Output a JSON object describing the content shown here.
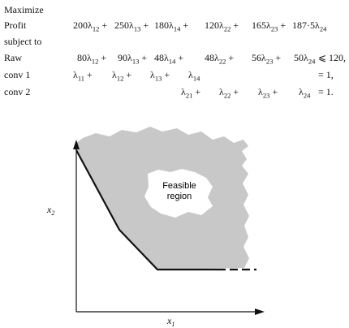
{
  "lp": {
    "maximize": "Maximize",
    "profit_label": "Profit",
    "subject_to": "subject to",
    "objective": [
      {
        "coef": "200",
        "idx": "12",
        "plus": true
      },
      {
        "coef": "250",
        "idx": "13",
        "plus": true
      },
      {
        "coef": "180",
        "idx": "14",
        "plus": true
      },
      {
        "coef": "120",
        "idx": "22",
        "plus": true
      },
      {
        "coef": "165",
        "idx": "23",
        "plus": true
      },
      {
        "coef": "187·5",
        "idx": "24",
        "plus": false
      }
    ],
    "constraints": [
      {
        "label": "Raw",
        "terms": [
          {
            "coef": "80",
            "idx": "12",
            "plus": true
          },
          {
            "coef": "90",
            "idx": "13",
            "plus": true
          },
          {
            "coef": "48",
            "idx": "14",
            "plus": true
          },
          {
            "coef": "48",
            "idx": "22",
            "plus": true
          },
          {
            "coef": "56",
            "idx": "23",
            "plus": true
          },
          {
            "coef": "50",
            "idx": "24",
            "plus": false
          }
        ],
        "relation": "⩽ 120,"
      },
      {
        "label": "conv 1",
        "terms": [
          {
            "coef": "",
            "idx": "11",
            "plus": true
          },
          {
            "coef": "",
            "idx": "12",
            "plus": true
          },
          {
            "coef": "",
            "idx": "13",
            "plus": true
          },
          {
            "coef": "",
            "idx": "14",
            "plus": false
          }
        ],
        "relation": "= 1,"
      },
      {
        "label": "conv 2",
        "terms": [
          {
            "coef": "",
            "idx": "21",
            "plus": true
          },
          {
            "coef": "",
            "idx": "22",
            "plus": true
          },
          {
            "coef": "",
            "idx": "23",
            "plus": true
          },
          {
            "coef": "",
            "idx": "24",
            "plus": false
          }
        ],
        "relation": "= 1."
      }
    ]
  },
  "figure": {
    "region_label_line1": "Feasible",
    "region_label_line2": "region",
    "x_axis_label": "x",
    "x_axis_sub": "1",
    "y_axis_label": "x",
    "y_axis_sub": "2",
    "region_color": "#c8c8c8"
  }
}
